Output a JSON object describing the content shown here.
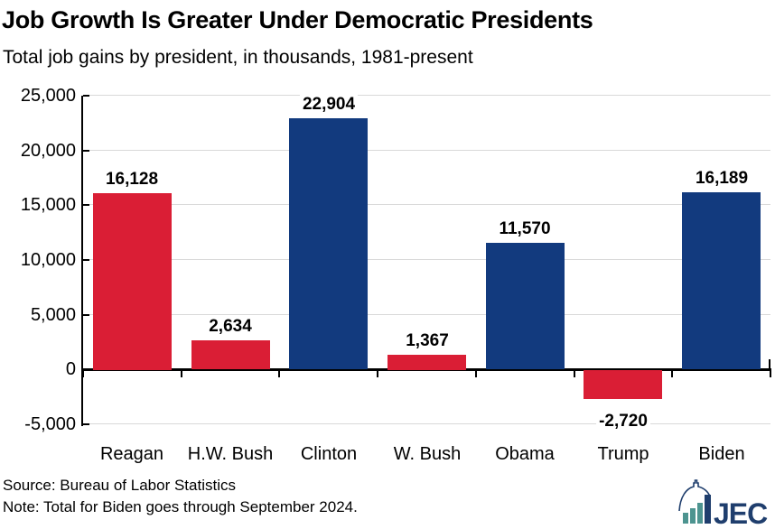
{
  "chart_data": {
    "type": "bar",
    "title": "Job Growth Is Greater Under Democratic Presidents",
    "subtitle": "Total job gains by president, in thousands, 1981-present",
    "categories": [
      "Reagan",
      "H.W. Bush",
      "Clinton",
      "W. Bush",
      "Obama",
      "Trump",
      "Biden"
    ],
    "values": [
      16128,
      2634,
      22904,
      1367,
      11570,
      -2720,
      16189
    ],
    "value_labels": [
      "16,128",
      "2,634",
      "22,904",
      "1,367",
      "11,570",
      "-2,720",
      "16,189"
    ],
    "party": [
      "R",
      "R",
      "D",
      "R",
      "D",
      "R",
      "D"
    ],
    "colors": {
      "R": "#DA1E35",
      "D": "#123A7E"
    },
    "xlabel": "",
    "ylabel": "",
    "ylim": [
      -5000,
      25000
    ],
    "ytick_values": [
      25000,
      20000,
      15000,
      10000,
      5000,
      0,
      -5000
    ],
    "ytick_labels": [
      "25,000",
      "20,000",
      "15,000",
      "10,000",
      "5,000",
      "0",
      "-5,000"
    ],
    "grid": true,
    "gridline_color": "#D9D9D9",
    "axis_color": "#000000",
    "legend": "none"
  },
  "footer": {
    "source": "Source: Bureau of Labor Statistics",
    "note": "Note: Total for Biden goes through September 2024."
  },
  "logo": {
    "text": "JEC",
    "icon": "capitol-dome-bars-icon",
    "navy": "#1F3E6D",
    "teal": "#4D9490"
  }
}
